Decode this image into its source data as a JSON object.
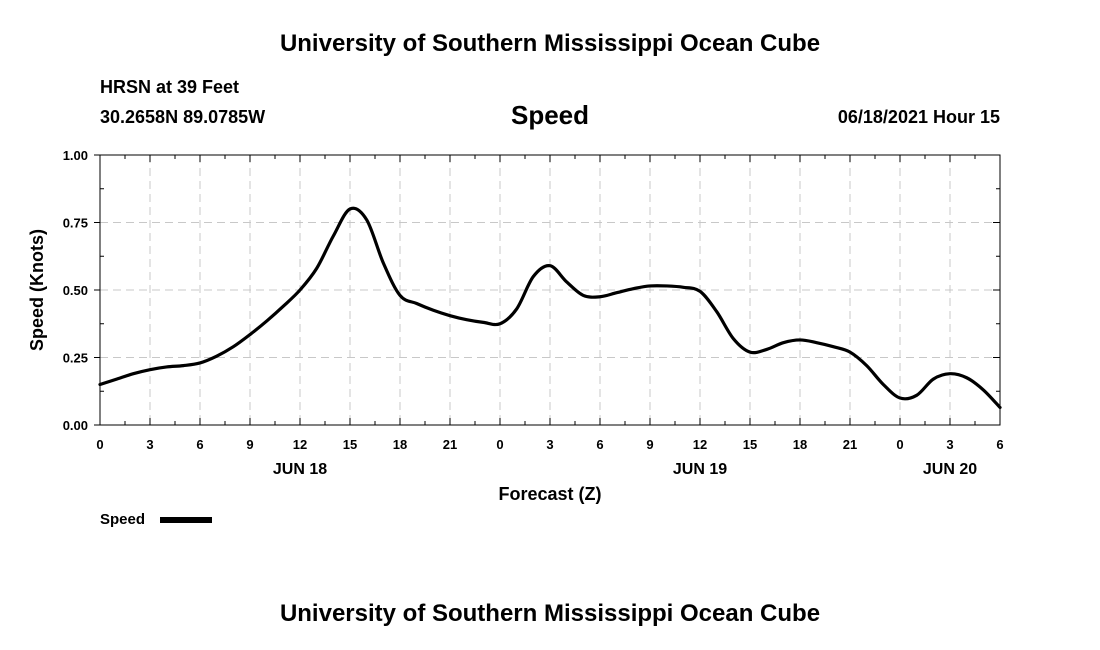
{
  "header": {
    "title": "University of Southern Mississippi Ocean Cube",
    "station": "HRSN at 39 Feet",
    "coords": "30.2658N  89.0785W",
    "variable": "Speed",
    "datetime": "06/18/2021 Hour 15"
  },
  "footer": {
    "title": "University of Southern Mississippi Ocean Cube"
  },
  "chart_data": {
    "type": "line",
    "title": "Speed",
    "xlabel": "Forecast (Z)",
    "ylabel": "Speed (Knots)",
    "xlim": [
      0,
      54
    ],
    "ylim": [
      0,
      1
    ],
    "grid": true,
    "x_ticks": [
      {
        "x": 0,
        "label": "0"
      },
      {
        "x": 3,
        "label": "3"
      },
      {
        "x": 6,
        "label": "6"
      },
      {
        "x": 9,
        "label": "9"
      },
      {
        "x": 12,
        "label": "12"
      },
      {
        "x": 15,
        "label": "15"
      },
      {
        "x": 18,
        "label": "18"
      },
      {
        "x": 21,
        "label": "21"
      },
      {
        "x": 24,
        "label": "0"
      },
      {
        "x": 27,
        "label": "3"
      },
      {
        "x": 30,
        "label": "6"
      },
      {
        "x": 33,
        "label": "9"
      },
      {
        "x": 36,
        "label": "12"
      },
      {
        "x": 39,
        "label": "15"
      },
      {
        "x": 42,
        "label": "18"
      },
      {
        "x": 45,
        "label": "21"
      },
      {
        "x": 48,
        "label": "0"
      },
      {
        "x": 51,
        "label": "3"
      },
      {
        "x": 54,
        "label": "6"
      }
    ],
    "y_ticks": [
      {
        "y": 0,
        "label": "0.00"
      },
      {
        "y": 0.25,
        "label": "0.25"
      },
      {
        "y": 0.5,
        "label": "0.50"
      },
      {
        "y": 0.75,
        "label": "0.75"
      },
      {
        "y": 1.0,
        "label": "1.00"
      }
    ],
    "date_labels": [
      {
        "x": 12,
        "label": "JUN 18"
      },
      {
        "x": 36,
        "label": "JUN 19"
      },
      {
        "x": 51,
        "label": "JUN 20"
      }
    ],
    "legend": {
      "label": "Speed",
      "position": "bottom-left"
    },
    "series": [
      {
        "name": "Speed",
        "color": "#000000",
        "x": [
          0,
          1,
          2,
          3,
          4,
          5,
          6,
          7,
          8,
          9,
          10,
          11,
          12,
          13,
          14,
          15,
          16,
          17,
          18,
          19,
          20,
          21,
          22,
          23,
          24,
          25,
          26,
          27,
          28,
          29,
          30,
          31,
          32,
          33,
          34,
          35,
          36,
          37,
          38,
          39,
          40,
          41,
          42,
          43,
          44,
          45,
          46,
          47,
          48,
          49,
          50,
          51,
          52,
          53,
          54
        ],
        "values": [
          0.15,
          0.17,
          0.19,
          0.205,
          0.215,
          0.22,
          0.23,
          0.255,
          0.29,
          0.335,
          0.385,
          0.44,
          0.5,
          0.58,
          0.7,
          0.8,
          0.76,
          0.6,
          0.48,
          0.45,
          0.425,
          0.405,
          0.39,
          0.38,
          0.375,
          0.43,
          0.55,
          0.59,
          0.53,
          0.48,
          0.475,
          0.49,
          0.505,
          0.515,
          0.515,
          0.51,
          0.495,
          0.42,
          0.32,
          0.27,
          0.28,
          0.305,
          0.315,
          0.305,
          0.29,
          0.27,
          0.22,
          0.15,
          0.1,
          0.11,
          0.17,
          0.19,
          0.175,
          0.13,
          0.065
        ]
      }
    ]
  }
}
